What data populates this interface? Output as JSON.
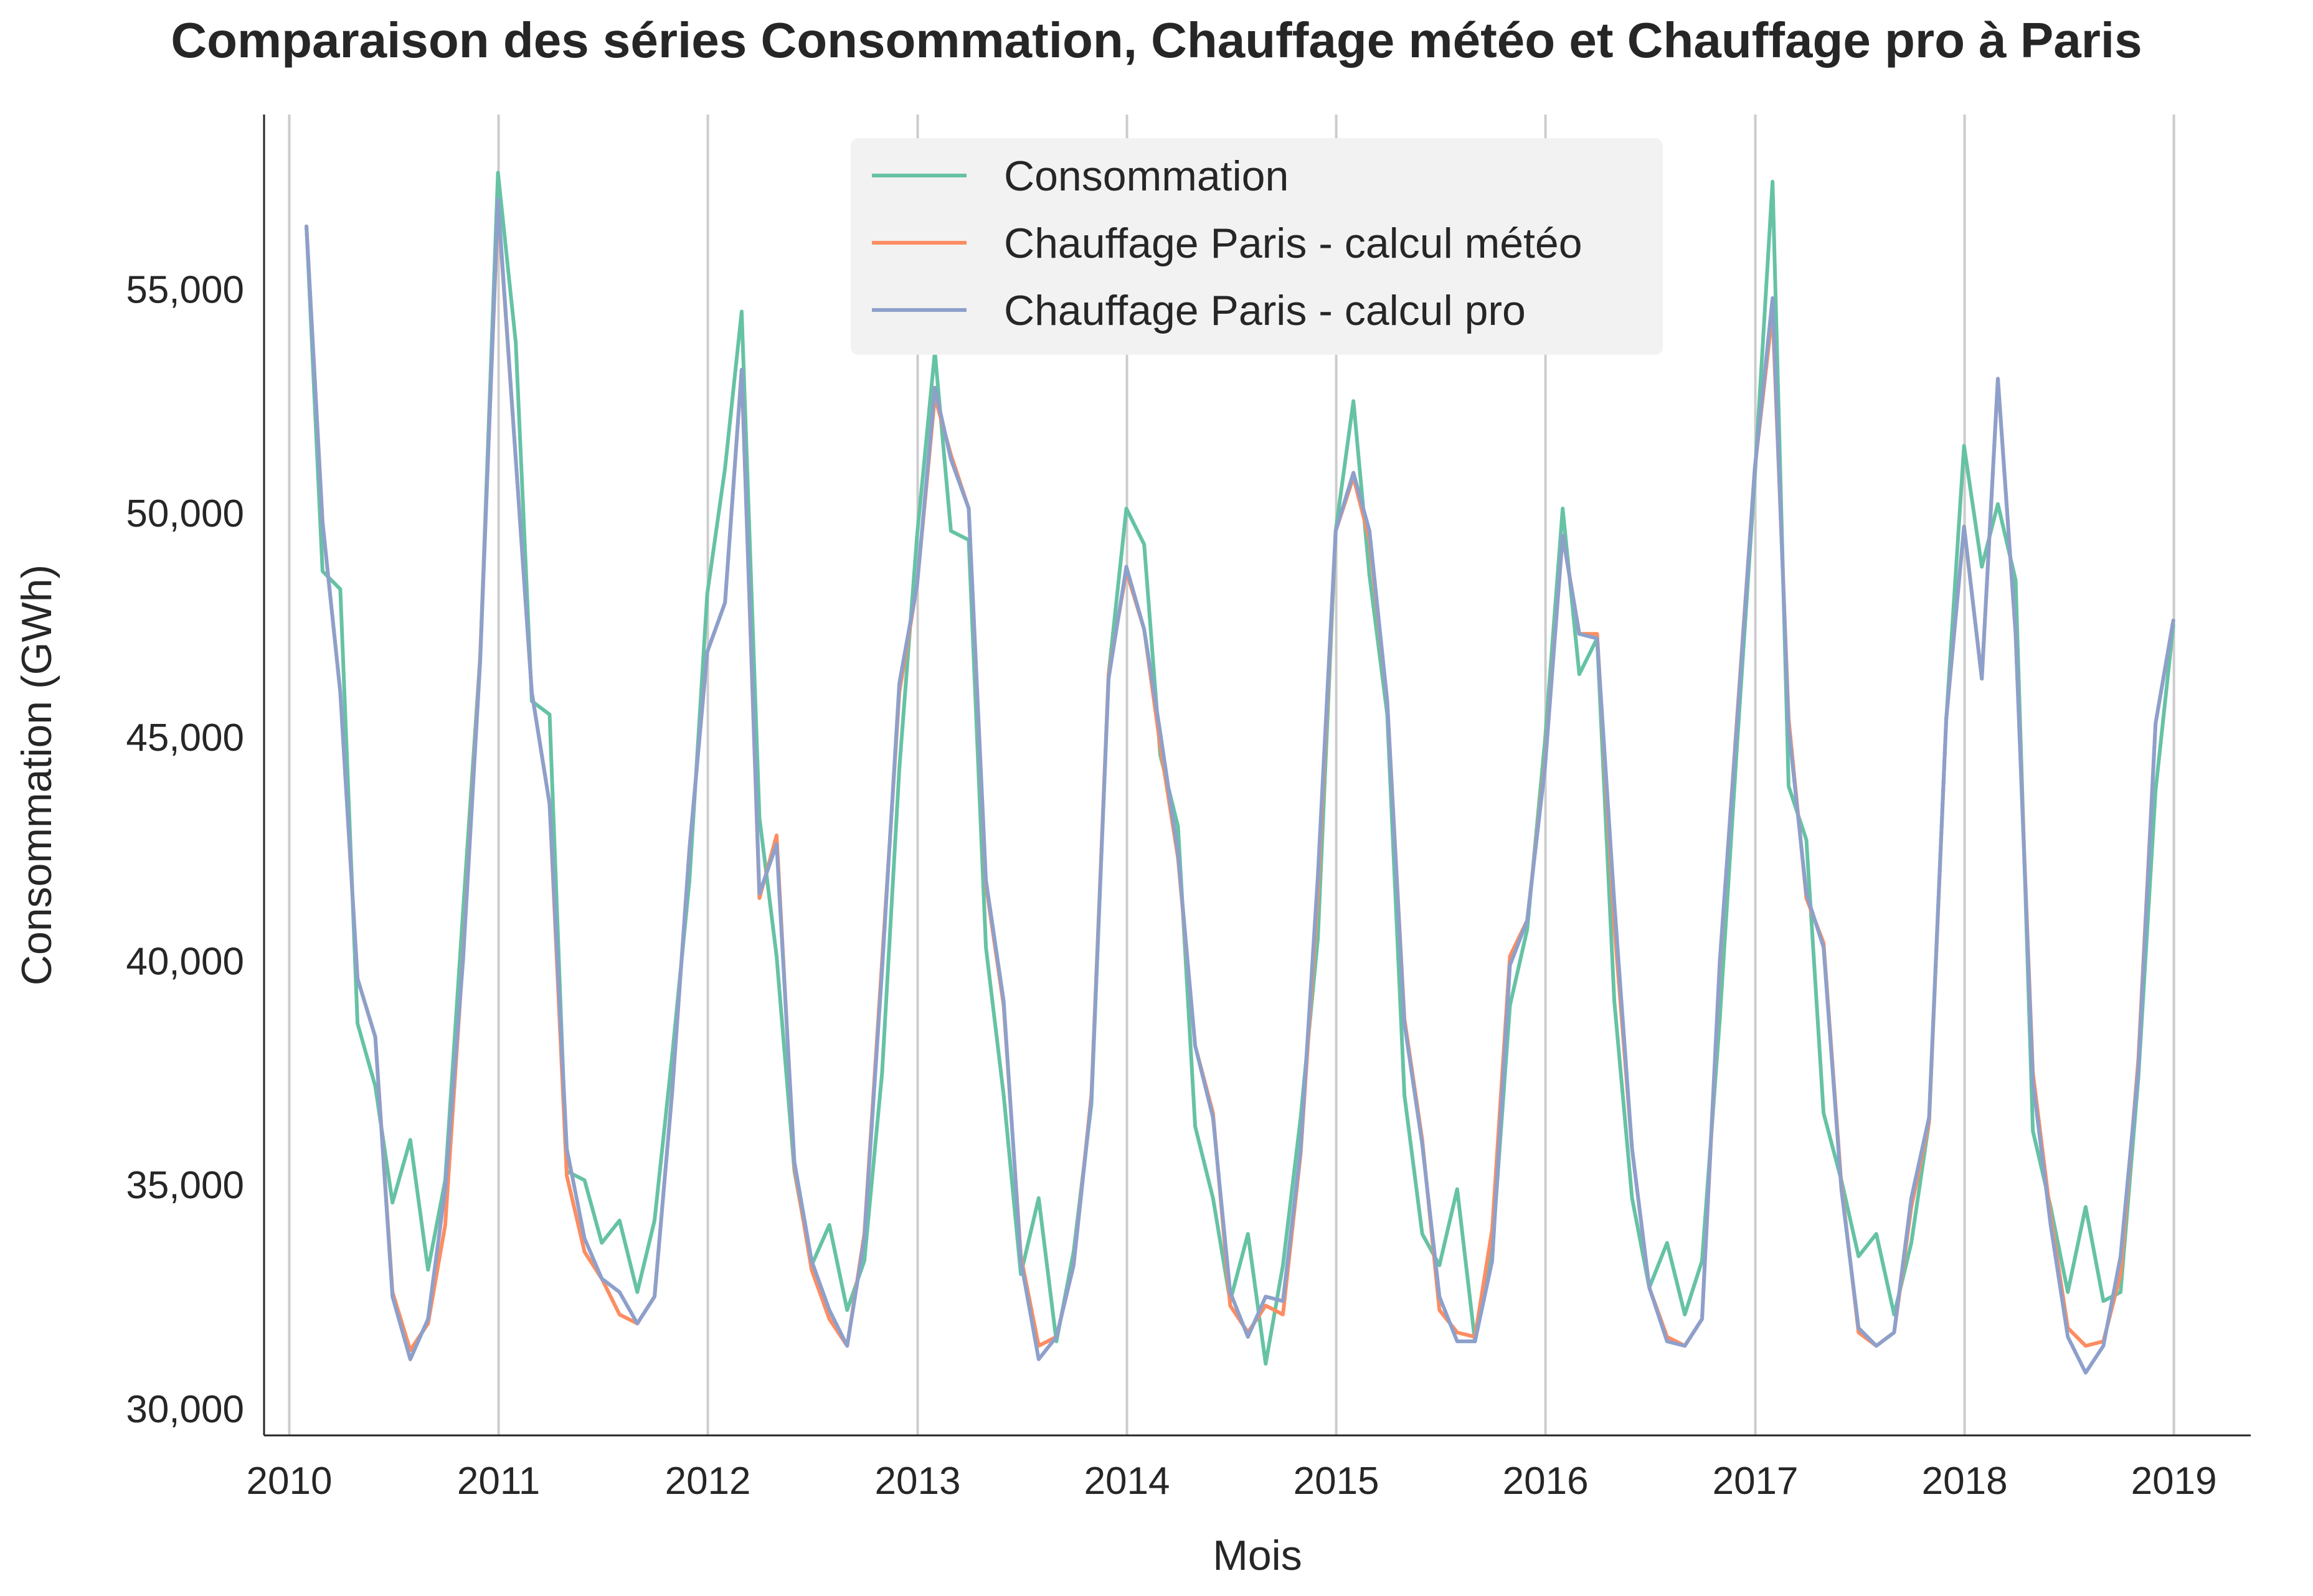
{
  "chart_data": {
    "type": "line",
    "title": "Comparaison des séries Consommation, Chauffage météo et Chauffage pro à Paris",
    "xlabel": "Mois",
    "ylabel": "Consommation (GWh)",
    "xlim": [
      "2009-11-18",
      "2019-05-15"
    ],
    "ylim": [
      29400,
      58900
    ],
    "yticks": [
      30000,
      35000,
      40000,
      45000,
      50000,
      55000
    ],
    "ytick_labels": [
      "30,000",
      "35,000",
      "40,000",
      "45,000",
      "50,000",
      "55,000"
    ],
    "xticks": [
      "2010-01-01",
      "2011-01-01",
      "2012-01-01",
      "2013-01-01",
      "2014-01-01",
      "2015-01-01",
      "2016-01-01",
      "2017-01-01",
      "2018-01-01",
      "2019-01-01"
    ],
    "xtick_labels": [
      "2010",
      "2011",
      "2012",
      "2013",
      "2014",
      "2015",
      "2016",
      "2017",
      "2018",
      "2019"
    ],
    "grid": "vertical",
    "legend_position": "top-center",
    "x": [
      "2010-01-31",
      "2010-02-28",
      "2010-03-31",
      "2010-04-30",
      "2010-05-31",
      "2010-06-30",
      "2010-07-31",
      "2010-08-31",
      "2010-09-30",
      "2010-10-31",
      "2010-11-30",
      "2010-12-31",
      "2011-01-31",
      "2011-02-28",
      "2011-03-31",
      "2011-04-30",
      "2011-05-31",
      "2011-06-30",
      "2011-07-31",
      "2011-08-31",
      "2011-09-30",
      "2011-10-31",
      "2011-11-30",
      "2011-12-31",
      "2012-01-31",
      "2012-02-29",
      "2012-03-31",
      "2012-04-30",
      "2012-05-31",
      "2012-06-30",
      "2012-07-31",
      "2012-08-31",
      "2012-09-30",
      "2012-10-31",
      "2012-11-30",
      "2012-12-31",
      "2013-01-31",
      "2013-02-28",
      "2013-03-31",
      "2013-04-30",
      "2013-05-31",
      "2013-06-30",
      "2013-07-31",
      "2013-08-31",
      "2013-09-30",
      "2013-10-31",
      "2013-11-30",
      "2013-12-31",
      "2014-01-31",
      "2014-02-28",
      "2014-03-31",
      "2014-04-30",
      "2014-05-31",
      "2014-06-30",
      "2014-07-31",
      "2014-08-31",
      "2014-09-30",
      "2014-10-31",
      "2014-11-30",
      "2014-12-31",
      "2015-01-31",
      "2015-02-28",
      "2015-03-31",
      "2015-04-30",
      "2015-05-31",
      "2015-06-30",
      "2015-07-31",
      "2015-08-31",
      "2015-09-30",
      "2015-10-31",
      "2015-11-30",
      "2015-12-31",
      "2016-01-31",
      "2016-02-29",
      "2016-03-31",
      "2016-04-30",
      "2016-05-31",
      "2016-06-30",
      "2016-07-31",
      "2016-08-31",
      "2016-09-30",
      "2016-10-31",
      "2016-11-30",
      "2016-12-31",
      "2017-01-31",
      "2017-02-28",
      "2017-03-31",
      "2017-04-30",
      "2017-05-31",
      "2017-06-30",
      "2017-07-31",
      "2017-08-31",
      "2017-09-30",
      "2017-10-31",
      "2017-11-30",
      "2017-12-31",
      "2018-01-31",
      "2018-02-28",
      "2018-03-31",
      "2018-04-30",
      "2018-05-31",
      "2018-06-30",
      "2018-07-31",
      "2018-08-31",
      "2018-09-30",
      "2018-10-31",
      "2018-11-30",
      "2018-12-31"
    ],
    "series": [
      {
        "name": "Consommation",
        "color": "#66c2a5",
        "values": [
          56400,
          48700,
          48300,
          38600,
          37200,
          34600,
          36000,
          33100,
          35100,
          41100,
          46800,
          57600,
          53800,
          45800,
          45500,
          35300,
          35100,
          33700,
          34200,
          32600,
          34200,
          37900,
          41800,
          48200,
          51000,
          54500,
          43200,
          40100,
          35300,
          33200,
          34100,
          32200,
          33300,
          37500,
          44300,
          49500,
          53600,
          49600,
          49400,
          40300,
          37000,
          33000,
          34700,
          31500,
          33500,
          36800,
          46400,
          50100,
          49300,
          44600,
          43000,
          36300,
          34700,
          32400,
          33900,
          31000,
          33200,
          36500,
          40500,
          49600,
          52500,
          48600,
          45500,
          37000,
          33900,
          33200,
          34900,
          31500,
          33500,
          39000,
          40700,
          44900,
          50100,
          46400,
          47200,
          39100,
          34700,
          32700,
          33700,
          32100,
          33300,
          38700,
          44800,
          50800,
          57400,
          43900,
          42700,
          36600,
          35100,
          33400,
          33900,
          32100,
          33700,
          36400,
          45400,
          51500,
          48800,
          50200,
          48500,
          36200,
          34500,
          32600,
          34500,
          32400,
          32600,
          37400,
          43800,
          47500
        ]
      },
      {
        "name": "Chauffage Paris - calcul météo",
        "color": "#fc8d62",
        "values": [
          56400,
          49800,
          46000,
          39600,
          38300,
          32600,
          31300,
          31900,
          34100,
          40100,
          46800,
          56900,
          51200,
          46000,
          43500,
          35200,
          33500,
          32900,
          32100,
          31900,
          32500,
          37100,
          42500,
          46900,
          48000,
          53200,
          41400,
          42800,
          35400,
          33100,
          32000,
          31400,
          33900,
          40000,
          46000,
          48400,
          52600,
          51300,
          50100,
          41700,
          39000,
          33400,
          31400,
          31600,
          33200,
          37000,
          46400,
          48700,
          47400,
          44800,
          42300,
          38100,
          36600,
          32300,
          31700,
          32300,
          32100,
          35700,
          41500,
          49600,
          50800,
          49400,
          45800,
          38700,
          36000,
          32200,
          31700,
          31600,
          34000,
          40100,
          40900,
          44400,
          49500,
          47300,
          47300,
          40800,
          35800,
          32700,
          31600,
          31400,
          32000,
          39900,
          45400,
          51000,
          54500,
          45400,
          41400,
          40400,
          35000,
          31700,
          31400,
          31700,
          34500,
          36400,
          45400,
          49700,
          46300,
          53000,
          47300,
          37500,
          34300,
          31800,
          31400,
          31500,
          33000,
          37800,
          45300,
          47600
        ]
      },
      {
        "name": "Chauffage Paris - calcul pro",
        "color": "#8da0cb",
        "values": [
          56400,
          49800,
          46000,
          39600,
          38300,
          32500,
          31100,
          32000,
          34900,
          40000,
          46700,
          57000,
          51200,
          46000,
          43500,
          35800,
          33800,
          32900,
          32600,
          31900,
          32500,
          37100,
          42500,
          46900,
          48000,
          53200,
          41500,
          42600,
          35500,
          33300,
          32200,
          31400,
          33800,
          39800,
          46200,
          48400,
          52800,
          51200,
          50100,
          41800,
          39100,
          33300,
          31100,
          31600,
          33200,
          36900,
          46300,
          48800,
          47400,
          45100,
          42400,
          38100,
          36500,
          32600,
          31600,
          32500,
          32400,
          35800,
          41900,
          49600,
          50900,
          49600,
          45800,
          38600,
          35900,
          32500,
          31500,
          31500,
          33300,
          39900,
          40900,
          44300,
          49500,
          47300,
          47200,
          41300,
          35800,
          32700,
          31500,
          31400,
          32000,
          40000,
          45300,
          51000,
          54800,
          45200,
          41500,
          40300,
          34900,
          31800,
          31400,
          31700,
          34700,
          36500,
          45400,
          49700,
          46300,
          53000,
          47300,
          37300,
          34100,
          31600,
          30800,
          31400,
          33400,
          37600,
          45300,
          47600
        ]
      }
    ]
  }
}
